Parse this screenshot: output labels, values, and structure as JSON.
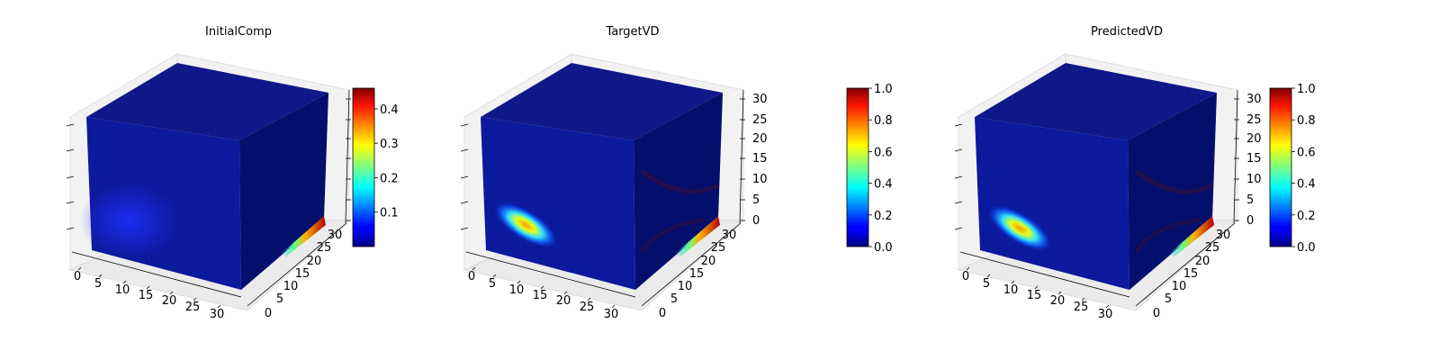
{
  "figure": {
    "background": "#ffffff",
    "colormap": "jet"
  },
  "chart_data": [
    {
      "type": "heatmap",
      "title": "InitialComp",
      "x_ticks": [
        "0",
        "5",
        "10",
        "15",
        "20",
        "25",
        "30"
      ],
      "y_ticks": [
        "0",
        "5",
        "10",
        "15",
        "20",
        "25",
        "30"
      ],
      "z_ticks": [
        "",
        "",
        "",
        "",
        "",
        "",
        ""
      ],
      "colorbar": {
        "min": 0.0,
        "max": 0.46,
        "ticks": [
          "0.1",
          "0.2",
          "0.3",
          "0.4"
        ],
        "tick_values": [
          0.1,
          0.2,
          0.3,
          0.4
        ]
      },
      "blobs": [
        {
          "face": "front",
          "u": 0.22,
          "v": 0.28,
          "value": 0.12,
          "spread": "wide"
        },
        {
          "face": "floor-edge",
          "u": 0.9,
          "v": 0.1,
          "value": 0.46,
          "spread": "thin"
        }
      ]
    },
    {
      "type": "heatmap",
      "title": "TargetVD",
      "x_ticks": [
        "0",
        "5",
        "10",
        "15",
        "20",
        "25",
        "30"
      ],
      "y_ticks": [
        "0",
        "5",
        "10",
        "15",
        "20",
        "25",
        "30"
      ],
      "z_ticks": [
        "0",
        "5",
        "10",
        "15",
        "20",
        "25",
        "30"
      ],
      "colorbar": {
        "min": 0.0,
        "max": 1.0,
        "ticks": [
          "0.0",
          "0.2",
          "0.4",
          "0.6",
          "0.8",
          "1.0"
        ],
        "tick_values": [
          0.0,
          0.2,
          0.4,
          0.6,
          0.8,
          1.0
        ]
      },
      "blobs": [
        {
          "face": "front",
          "u": 0.2,
          "v": 0.3,
          "value": 0.75,
          "spread": "diag"
        },
        {
          "face": "floor-edge",
          "u": 0.9,
          "v": 0.1,
          "value": 1.0,
          "spread": "thin"
        }
      ]
    },
    {
      "type": "heatmap",
      "title": "PredictedVD",
      "x_ticks": [
        "0",
        "5",
        "10",
        "15",
        "20",
        "25",
        "30"
      ],
      "y_ticks": [
        "0",
        "5",
        "10",
        "15",
        "20",
        "25",
        "30"
      ],
      "z_ticks": [
        "0",
        "5",
        "10",
        "15",
        "20",
        "25",
        "30"
      ],
      "colorbar": {
        "min": 0.0,
        "max": 1.0,
        "ticks": [
          "0.0",
          "0.2",
          "0.4",
          "0.6",
          "0.8",
          "1.0"
        ],
        "tick_values": [
          0.0,
          0.2,
          0.4,
          0.6,
          0.8,
          1.0
        ]
      },
      "blobs": [
        {
          "face": "front",
          "u": 0.2,
          "v": 0.32,
          "value": 0.8,
          "spread": "diag"
        },
        {
          "face": "floor-edge",
          "u": 0.9,
          "v": 0.1,
          "value": 1.0,
          "spread": "thin"
        }
      ]
    }
  ]
}
